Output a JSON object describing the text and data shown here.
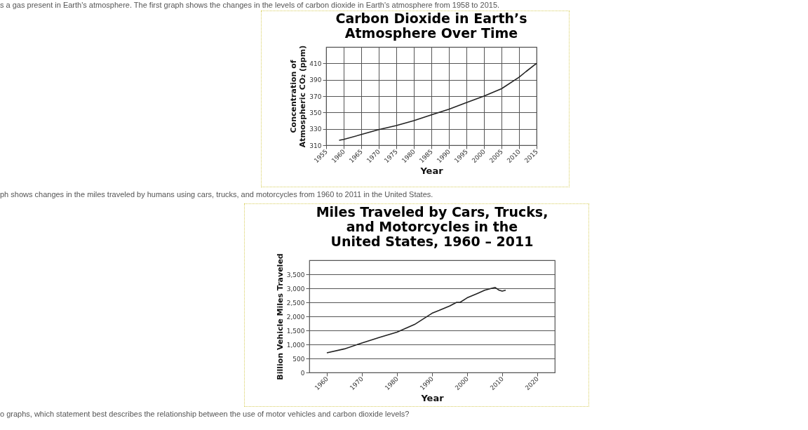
{
  "chart_data": [
    {
      "type": "line",
      "title": "Carbon Dioxide in Earth’s\nAtmosphere Over Time",
      "xlabel": "Year",
      "ylabel": "Concentration of\nAtmospheric CO₂ (ppm)",
      "annotations": [
        "s a gas present in Earth's atmosphere. The first graph shows the changes in the levels of carbon dioxide in Earth's atmosphere from 1958 to 2015."
      ],
      "series": [
        {
          "color": "#222222",
          "x": [
            1958.7,
            1960,
            1965,
            1970,
            1975,
            1980,
            1985,
            1990,
            1995,
            2000,
            2005,
            2010,
            2012,
            2015
          ],
          "values": [
            316,
            317,
            323,
            329,
            334,
            340,
            347,
            354,
            362,
            370,
            379,
            393,
            400,
            410
          ]
        }
      ],
      "xlim": [
        1955,
        2015
      ],
      "xticks": [
        1955,
        1960,
        1965,
        1970,
        1975,
        1980,
        1985,
        1990,
        1995,
        2000,
        2005,
        2010,
        2015
      ],
      "ylim": [
        310,
        430
      ],
      "yticks": [
        310,
        330,
        350,
        370,
        390,
        410
      ],
      "grid": true
    },
    {
      "type": "line",
      "title": "Miles Traveled by Cars, Trucks,\nand Motorcycles in the\nUnited States, 1960 – 2011",
      "xlabel": "Year",
      "ylabel": "Billion Vehicle Miles Traveled",
      "annotations": [
        "ph shows changes in the miles traveled by humans using cars, trucks, and motorcycles from 1960 to 2011 in the United States.",
        "o graphs, which statement best describes the relationship between the use of motor vehicles and carbon dioxide levels?"
      ],
      "series": [
        {
          "color": "#222222",
          "x": [
            1960,
            1965,
            1970,
            1975,
            1980,
            1985,
            1990,
            1992,
            1995,
            1997,
            1998,
            2000,
            2003,
            2005,
            2007,
            2008,
            2009,
            2010,
            2011
          ],
          "values": [
            700,
            840,
            1050,
            1250,
            1440,
            1710,
            2110,
            2210,
            2370,
            2500,
            2500,
            2660,
            2820,
            2930,
            3000,
            3030,
            2940,
            2900,
            2930
          ]
        }
      ],
      "xlim": [
        1955,
        2025
      ],
      "xticks": [
        1960,
        1970,
        1980,
        1990,
        2000,
        2010,
        2020
      ],
      "ylim": [
        0,
        4000
      ],
      "yticks": [
        0,
        500,
        {
          "value": 1000,
          "label": "1,000"
        },
        {
          "value": 1500,
          "label": "1,500"
        },
        {
          "value": 2000,
          "label": "2,000"
        },
        {
          "value": 2500,
          "label": "2,500"
        },
        {
          "value": 3000,
          "label": "3,000"
        },
        {
          "value": 3500,
          "label": "3,500"
        }
      ],
      "grid": "y"
    }
  ]
}
